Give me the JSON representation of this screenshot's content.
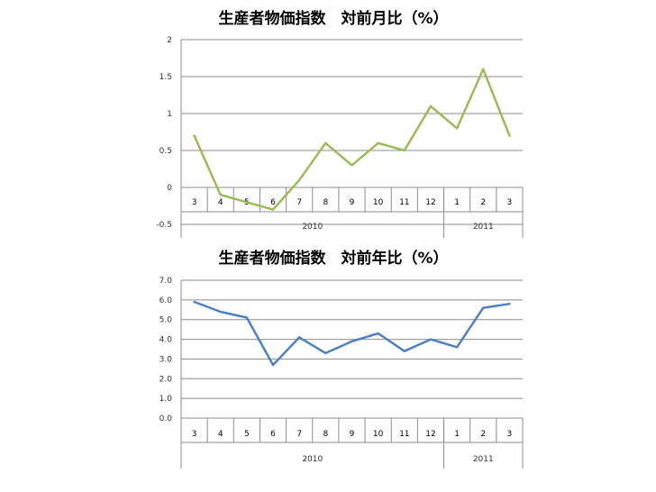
{
  "chart_data": [
    {
      "type": "line",
      "title": "生産者物価指数　対前月比（%）",
      "categories": [
        "3",
        "4",
        "5",
        "6",
        "7",
        "8",
        "9",
        "10",
        "11",
        "12",
        "1",
        "2",
        "3"
      ],
      "category_groups": [
        {
          "label": "2010",
          "count": 10
        },
        {
          "label": "2011",
          "count": 3
        }
      ],
      "series": [
        {
          "values": [
            0.7,
            -0.1,
            -0.2,
            -0.3,
            0.1,
            0.6,
            0.3,
            0.6,
            0.5,
            1.1,
            0.8,
            1.6,
            0.7
          ],
          "color": "#9bbb59"
        }
      ],
      "ylim": [
        -0.5,
        2
      ],
      "yticks": [
        -0.5,
        0,
        0.5,
        1,
        1.5,
        2
      ],
      "ytick_labels": [
        "-0.5",
        "0",
        "0.5",
        "1",
        "1.5",
        "2"
      ],
      "grid": true,
      "legend": "none"
    },
    {
      "type": "line",
      "title": "生産者物価指数　対前年比（%）",
      "categories": [
        "3",
        "4",
        "5",
        "6",
        "7",
        "8",
        "9",
        "10",
        "11",
        "12",
        "1",
        "2",
        "3"
      ],
      "category_groups": [
        {
          "label": "2010",
          "count": 10
        },
        {
          "label": "2011",
          "count": 3
        }
      ],
      "series": [
        {
          "values": [
            5.9,
            5.4,
            5.1,
            2.7,
            4.1,
            3.3,
            3.9,
            4.3,
            3.4,
            4.0,
            3.6,
            5.6,
            5.8
          ],
          "color": "#4f81bd"
        }
      ],
      "ylim": [
        0,
        7
      ],
      "yticks": [
        0,
        1,
        2,
        3,
        4,
        5,
        6,
        7
      ],
      "ytick_labels": [
        "0.0",
        "1.0",
        "2.0",
        "3.0",
        "4.0",
        "5.0",
        "6.0",
        "7.0"
      ],
      "grid": true,
      "legend": "none"
    }
  ]
}
